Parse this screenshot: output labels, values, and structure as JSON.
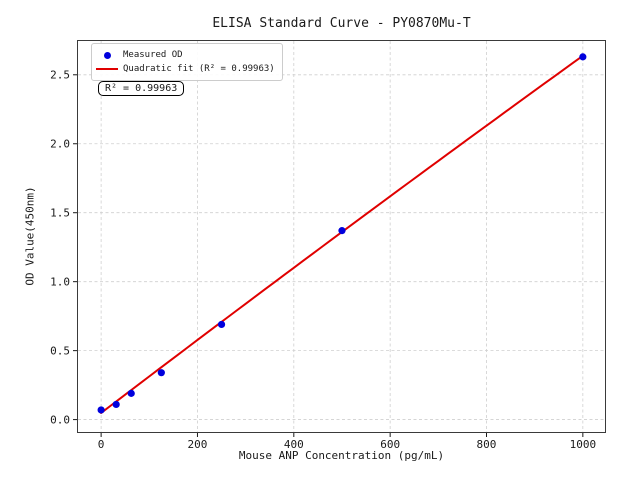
{
  "figure": {
    "background_color": "#ffffff",
    "text_color": "#1a1a1a"
  },
  "chart_data": {
    "type": "scatter",
    "title": "ELISA Standard Curve - PY0870Mu-T",
    "xlabel": "Mouse ANP Concentration (pg/mL)",
    "ylabel": "OD Value(450nm)",
    "xlim": [
      -48,
      1046
    ],
    "ylim": [
      -0.09,
      2.745
    ],
    "grid": true,
    "grid_style": "dashed",
    "grid_color": "#cfcfcf",
    "legend_position": "upper left",
    "x_ticks": [
      0,
      200,
      400,
      600,
      800,
      1000
    ],
    "x_tick_labels": [
      "0",
      "200",
      "400",
      "600",
      "800",
      "1000"
    ],
    "y_ticks": [
      0.0,
      0.5,
      1.0,
      1.5,
      2.0,
      2.5
    ],
    "y_tick_labels": [
      "0.0",
      "0.5",
      "1.0",
      "1.5",
      "2.0",
      "2.5"
    ],
    "series": [
      {
        "name": "Measured OD",
        "kind": "scatter",
        "color": "#0000dd",
        "marker": "circle",
        "x": [
          0,
          31.25,
          62.5,
          125,
          250,
          500,
          1000
        ],
        "y": [
          0.07,
          0.11,
          0.19,
          0.34,
          0.69,
          1.37,
          2.63
        ]
      },
      {
        "name": "Quadratic fit (R² = 0.99963)",
        "kind": "line",
        "color": "#e00000",
        "fit": {
          "model": "quadratic",
          "a": 0.048,
          "b": 0.00266,
          "c": -7e-08,
          "x_range": [
            0,
            1000
          ],
          "r_squared": 0.99963
        }
      }
    ],
    "legend": [
      {
        "label": "Measured OD"
      },
      {
        "label": "Quadratic fit (R² = 0.99963)"
      }
    ],
    "annotation": "R² = 0.99963",
    "r_squared": 0.99963
  }
}
